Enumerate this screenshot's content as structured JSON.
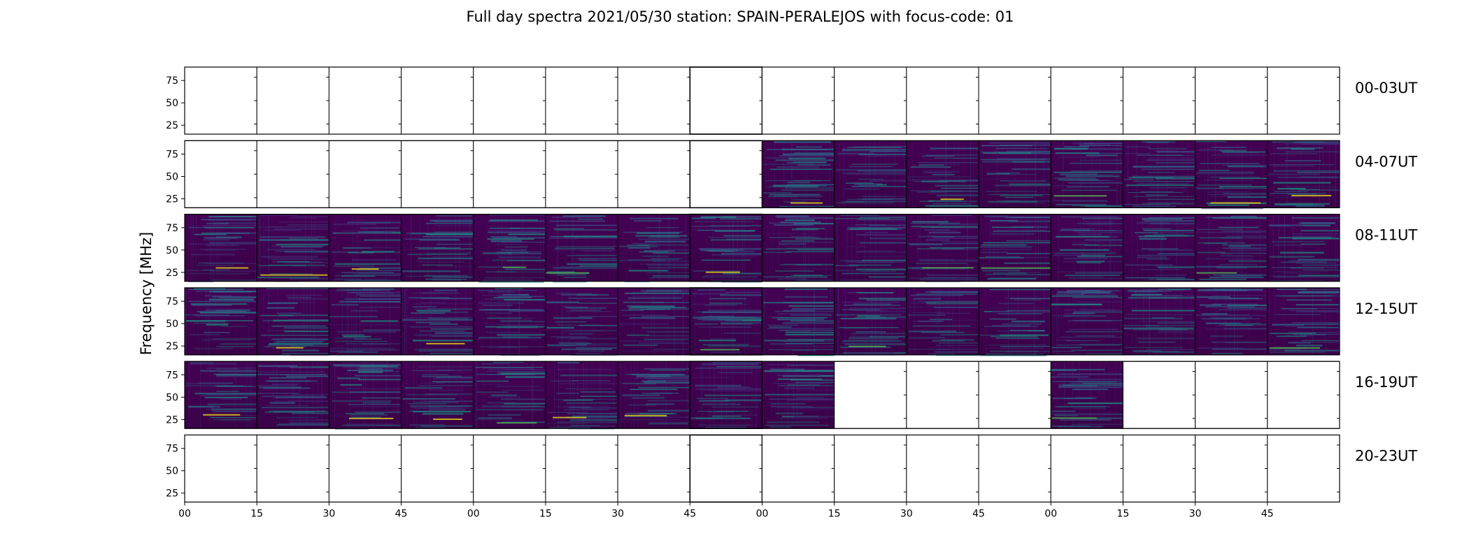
{
  "chart_data": {
    "type": "heatmap",
    "title": "Full day spectra 2021/05/30 station: SPAIN-PERALEJOS with focus-code: 01",
    "ylabel": "Frequency [MHz]",
    "xlabel": "",
    "ylim": [
      15,
      90
    ],
    "y_ticks": [
      "75",
      "50",
      "25"
    ],
    "x_ticks": [
      "00",
      "15",
      "30",
      "45",
      "00",
      "15",
      "30",
      "45",
      "00",
      "15",
      "30",
      "45",
      "00",
      "15",
      "30",
      "45"
    ],
    "colormap": "viridis",
    "colors": {
      "empty": "#ffffff",
      "low": "#440154",
      "mid": "#3b528b",
      "high": "#21918c",
      "peak": "#fde725"
    },
    "rows": [
      {
        "label": "00-03UT",
        "panels": [
          0,
          0,
          0,
          0,
          0,
          0,
          0,
          0,
          0,
          0,
          0,
          0,
          0,
          0,
          0,
          0
        ]
      },
      {
        "label": "04-07UT",
        "panels": [
          0,
          0,
          0,
          0,
          0,
          0,
          0,
          0,
          1,
          1,
          1,
          1,
          1,
          1,
          1,
          1
        ]
      },
      {
        "label": "08-11UT",
        "panels": [
          1,
          1,
          1,
          1,
          1,
          1,
          1,
          1,
          1,
          1,
          1,
          1,
          1,
          1,
          1,
          1
        ]
      },
      {
        "label": "12-15UT",
        "panels": [
          1,
          1,
          1,
          1,
          1,
          1,
          1,
          1,
          1,
          1,
          1,
          1,
          1,
          1,
          1,
          1
        ]
      },
      {
        "label": "16-19UT",
        "panels": [
          1,
          1,
          1,
          1,
          1,
          1,
          1,
          1,
          1,
          0,
          0,
          0,
          1,
          0,
          0,
          0
        ]
      },
      {
        "label": "20-23UT",
        "panels": [
          0,
          0,
          0,
          0,
          0,
          0,
          0,
          0,
          0,
          0,
          0,
          0,
          0,
          0,
          0,
          0
        ]
      }
    ]
  }
}
